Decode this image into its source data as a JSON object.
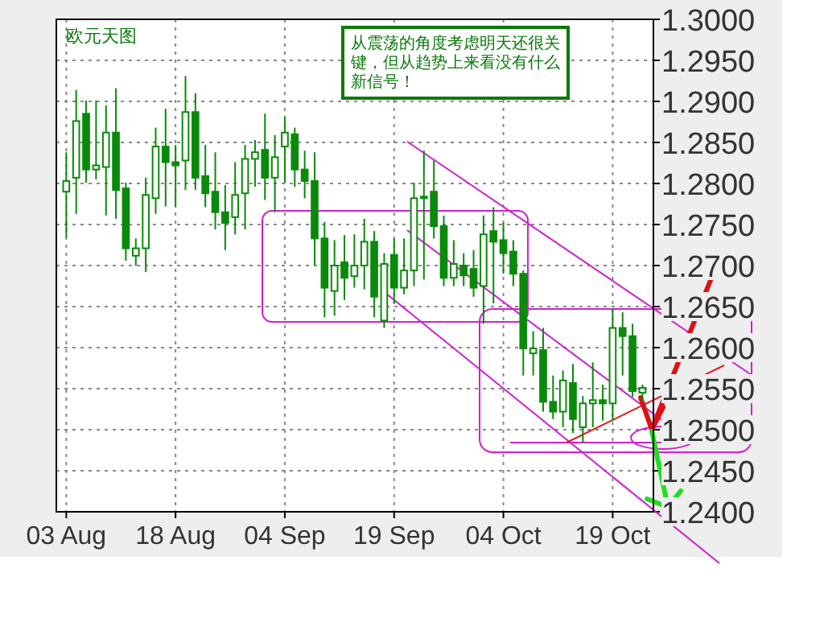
{
  "chart_data": {
    "type": "candlestick",
    "title": "欧元天图",
    "annotations": [
      "从震荡的角度考虑明天还很关键，但从趋势上来看没有什么新信号！"
    ],
    "categories": [
      "03 Aug",
      null,
      null,
      null,
      null,
      null,
      null,
      null,
      null,
      null,
      null,
      "18 Aug",
      null,
      null,
      null,
      null,
      null,
      null,
      null,
      null,
      null,
      null,
      "04 Sep",
      null,
      null,
      null,
      null,
      null,
      null,
      null,
      null,
      null,
      null,
      "19 Sep",
      null,
      null,
      null,
      null,
      null,
      null,
      null,
      null,
      null,
      null,
      "04 Oct",
      null,
      null,
      null,
      null,
      null,
      null,
      null,
      null,
      null,
      null,
      "19 Oct",
      null,
      null,
      null
    ],
    "ohlc": [
      [
        1.279,
        1.2838,
        1.2734,
        1.2803
      ],
      [
        1.2807,
        1.2914,
        1.2763,
        1.2876
      ],
      [
        1.2885,
        1.2901,
        1.2801,
        1.2817
      ],
      [
        1.2817,
        1.2901,
        1.2805,
        1.2822
      ],
      [
        1.282,
        1.2895,
        1.2761,
        1.2862
      ],
      [
        1.2862,
        1.2916,
        1.2757,
        1.2792
      ],
      [
        1.2794,
        1.2801,
        1.2706,
        1.2721
      ],
      [
        1.2712,
        1.2733,
        1.27,
        1.2721
      ],
      [
        1.2721,
        1.2807,
        1.2692,
        1.2786
      ],
      [
        1.2782,
        1.2868,
        1.2763,
        1.2845
      ],
      [
        1.2845,
        1.2891,
        1.2772,
        1.2826
      ],
      [
        1.2826,
        1.2847,
        1.2772,
        1.2822
      ],
      [
        1.2828,
        1.2931,
        1.2792,
        1.2887
      ],
      [
        1.2887,
        1.291,
        1.2792,
        1.2807
      ],
      [
        1.2809,
        1.2847,
        1.2771,
        1.2788
      ],
      [
        1.279,
        1.2838,
        1.2744,
        1.2765
      ],
      [
        1.2765,
        1.2798,
        1.2719,
        1.2752
      ],
      [
        1.2759,
        1.2826,
        1.2738,
        1.2786
      ],
      [
        1.2788,
        1.2847,
        1.2744,
        1.283
      ],
      [
        1.283,
        1.2853,
        1.2796,
        1.2838
      ],
      [
        1.2841,
        1.2885,
        1.278,
        1.2807
      ],
      [
        1.2807,
        1.2859,
        1.2765,
        1.2832
      ],
      [
        1.2845,
        1.2881,
        1.2801,
        1.2862
      ],
      [
        1.286,
        1.2868,
        1.2796,
        1.2817
      ],
      [
        1.2817,
        1.284,
        1.2782,
        1.2803
      ],
      [
        1.2803,
        1.2838,
        1.27,
        1.2733
      ],
      [
        1.2733,
        1.2753,
        1.2637,
        1.2673
      ],
      [
        1.2669,
        1.2731,
        1.2639,
        1.27
      ],
      [
        1.2704,
        1.2737,
        1.2658,
        1.2685
      ],
      [
        1.2687,
        1.2738,
        1.2673,
        1.27
      ],
      [
        1.27,
        1.2757,
        1.2671,
        1.2729
      ],
      [
        1.2729,
        1.2742,
        1.2637,
        1.2662
      ],
      [
        1.2633,
        1.2715,
        1.2624,
        1.2702
      ],
      [
        1.2713,
        1.2733,
        1.2654,
        1.2673
      ],
      [
        1.2673,
        1.2733,
        1.2665,
        1.2694
      ],
      [
        1.2694,
        1.2801,
        1.2675,
        1.2782
      ],
      [
        1.2782,
        1.284,
        1.2683,
        1.2784
      ],
      [
        1.279,
        1.2828,
        1.2733,
        1.2748
      ],
      [
        1.2748,
        1.2761,
        1.2675,
        1.2685
      ],
      [
        1.2685,
        1.2731,
        1.2675,
        1.2702
      ],
      [
        1.27,
        1.2715,
        1.2675,
        1.2688
      ],
      [
        1.2696,
        1.2719,
        1.2662,
        1.2673
      ],
      [
        1.2675,
        1.2761,
        1.2629,
        1.2738
      ],
      [
        1.2742,
        1.2771,
        1.2654,
        1.2729
      ],
      [
        1.2731,
        1.2752,
        1.269,
        1.2715
      ],
      [
        1.2717,
        1.2731,
        1.2675,
        1.269
      ],
      [
        1.269,
        1.2694,
        1.2566,
        1.2599
      ],
      [
        1.2593,
        1.262,
        1.2566,
        1.2599
      ],
      [
        1.2597,
        1.2624,
        1.2522,
        1.2534
      ],
      [
        1.2534,
        1.2566,
        1.2513,
        1.2522
      ],
      [
        1.2522,
        1.2572,
        1.2503,
        1.256
      ],
      [
        1.2557,
        1.258,
        1.2496,
        1.2513
      ],
      [
        1.2503,
        1.2541,
        1.2484,
        1.2532
      ],
      [
        1.2532,
        1.2582,
        1.2503,
        1.2536
      ],
      [
        1.2536,
        1.2555,
        1.2511,
        1.2532
      ],
      [
        1.2532,
        1.2648,
        1.2511,
        1.2624
      ],
      [
        1.2624,
        1.2643,
        1.2566,
        1.2614
      ],
      [
        1.2614,
        1.2629,
        1.254,
        1.2547
      ],
      [
        1.2545,
        1.2555,
        1.2534,
        1.2551
      ]
    ],
    "color": "#0a8a0a",
    "ylim": [
      1.24,
      1.3
    ],
    "yticks": [
      {
        "value": 1.24,
        "label": "1.2400"
      },
      {
        "value": 1.245,
        "label": "1.2450"
      },
      {
        "value": 1.25,
        "label": "1.2500"
      },
      {
        "value": 1.255,
        "label": "1.2550"
      },
      {
        "value": 1.26,
        "label": "1.2600"
      },
      {
        "value": 1.265,
        "label": "1.2650"
      },
      {
        "value": 1.27,
        "label": "1.2700"
      },
      {
        "value": 1.275,
        "label": "1.2750"
      },
      {
        "value": 1.28,
        "label": "1.2800"
      },
      {
        "value": 1.285,
        "label": "1.2850"
      },
      {
        "value": 1.29,
        "label": "1.2900"
      },
      {
        "value": 1.295,
        "label": "1.2950"
      },
      {
        "value": 1.3,
        "label": "1.3000"
      }
    ],
    "grid": true
  }
}
